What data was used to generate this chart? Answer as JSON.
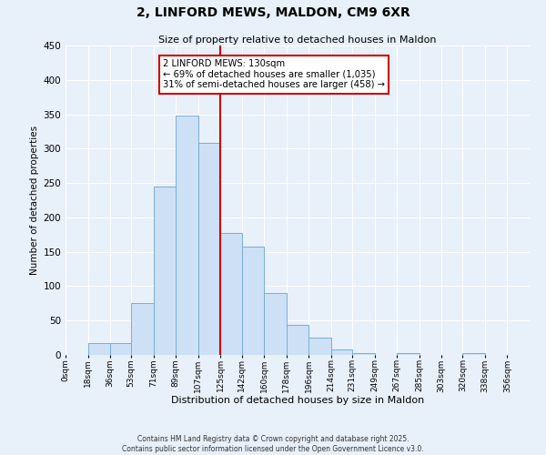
{
  "title": "2, LINFORD MEWS, MALDON, CM9 6XR",
  "subtitle": "Size of property relative to detached houses in Maldon",
  "xlabel": "Distribution of detached houses by size in Maldon",
  "ylabel": "Number of detached properties",
  "bar_left_edges": [
    0,
    18,
    36,
    53,
    71,
    89,
    107,
    125,
    142,
    160,
    178,
    196,
    214,
    231,
    249,
    267,
    285,
    303,
    320,
    338
  ],
  "bar_heights": [
    0,
    17,
    17,
    75,
    245,
    348,
    308,
    178,
    158,
    90,
    44,
    25,
    8,
    2,
    0,
    2,
    0,
    0,
    2,
    0
  ],
  "bar_widths": [
    18,
    18,
    17,
    18,
    18,
    18,
    18,
    17,
    18,
    18,
    18,
    18,
    17,
    18,
    18,
    18,
    18,
    17,
    18,
    18
  ],
  "bar_color": "#cde0f5",
  "bar_edgecolor": "#7aaed4",
  "vline_x": 125,
  "vline_color": "#cc0000",
  "ylim": [
    0,
    450
  ],
  "yticks": [
    0,
    50,
    100,
    150,
    200,
    250,
    300,
    350,
    400,
    450
  ],
  "xtick_labels": [
    "0sqm",
    "18sqm",
    "36sqm",
    "53sqm",
    "71sqm",
    "89sqm",
    "107sqm",
    "125sqm",
    "142sqm",
    "160sqm",
    "178sqm",
    "196sqm",
    "214sqm",
    "231sqm",
    "249sqm",
    "267sqm",
    "285sqm",
    "303sqm",
    "320sqm",
    "338sqm",
    "356sqm"
  ],
  "xtick_positions": [
    0,
    18,
    36,
    53,
    71,
    89,
    107,
    125,
    142,
    160,
    178,
    196,
    214,
    231,
    249,
    267,
    285,
    303,
    320,
    338,
    356
  ],
  "annotation_title": "2 LINFORD MEWS: 130sqm",
  "annotation_line1": "← 69% of detached houses are smaller (1,035)",
  "annotation_line2": "31% of semi-detached houses are larger (458) →",
  "annotation_box_color": "#ffffff",
  "annotation_box_edgecolor": "#cc0000",
  "footer_line1": "Contains HM Land Registry data © Crown copyright and database right 2025.",
  "footer_line2": "Contains public sector information licensed under the Open Government Licence v3.0.",
  "bg_color": "#e8f0fa",
  "grid_color": "#ffffff"
}
